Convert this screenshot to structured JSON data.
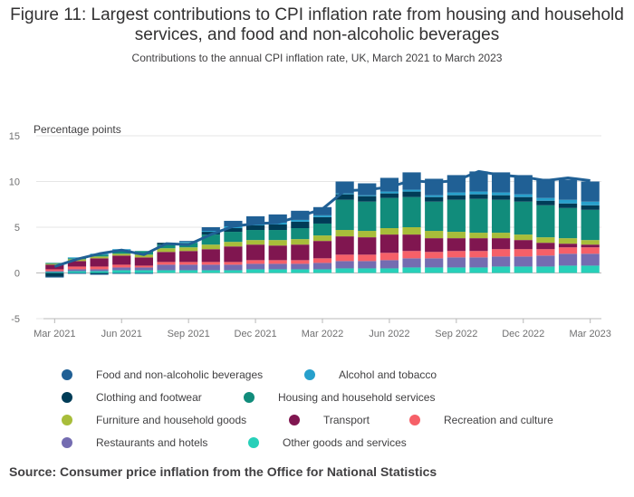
{
  "chart_data": {
    "type": "bar",
    "stacked": true,
    "title": "Figure 11: Largest contributions to CPI inflation rate from housing and household services, and food and non-alcoholic beverages",
    "subtitle": "Contributions to the annual CPI inflation rate, UK, March 2021 to March 2023",
    "ylabel": "Percentage points",
    "ylim": [
      -5,
      15
    ],
    "yticks": [
      -5,
      0,
      5,
      10,
      15
    ],
    "grid": true,
    "legend_position": "bottom",
    "source": "Source: Consumer price inflation from the Office for National Statistics",
    "x_tick_labels": [
      "Mar 2021",
      "Jun 2021",
      "Sep 2021",
      "Dec 2021",
      "Mar 2022",
      "Jun 2022",
      "Sep 2022",
      "Dec 2022",
      "Mar 2023"
    ],
    "x_tick_index": [
      0,
      3,
      6,
      9,
      12,
      15,
      18,
      21,
      24
    ],
    "categories": [
      "Mar 2021",
      "Apr 2021",
      "May 2021",
      "Jun 2021",
      "Jul 2021",
      "Aug 2021",
      "Sep 2021",
      "Oct 2021",
      "Nov 2021",
      "Dec 2021",
      "Jan 2022",
      "Feb 2022",
      "Mar 2022",
      "Apr 2022",
      "May 2022",
      "Jun 2022",
      "Jul 2022",
      "Aug 2022",
      "Sep 2022",
      "Oct 2022",
      "Nov 2022",
      "Dec 2022",
      "Jan 2023",
      "Feb 2023",
      "Mar 2023"
    ],
    "series": [
      {
        "name": "Other goods and services",
        "color": "#27d0b9",
        "values": [
          0.1,
          0.2,
          0.2,
          0.3,
          0.3,
          0.3,
          0.3,
          0.3,
          0.3,
          0.4,
          0.4,
          0.4,
          0.4,
          0.5,
          0.5,
          0.5,
          0.6,
          0.6,
          0.6,
          0.6,
          0.7,
          0.7,
          0.7,
          0.8,
          0.8
        ]
      },
      {
        "name": "Restaurants and hotels",
        "color": "#746cb1",
        "values": [
          0.1,
          0.2,
          0.2,
          0.3,
          0.3,
          0.6,
          0.6,
          0.6,
          0.6,
          0.6,
          0.6,
          0.6,
          0.7,
          0.8,
          0.8,
          0.9,
          1.0,
          1.0,
          1.1,
          1.1,
          1.1,
          1.1,
          1.2,
          1.3,
          1.3
        ]
      },
      {
        "name": "Recreation and culture",
        "color": "#f66068",
        "values": [
          0.2,
          0.3,
          0.3,
          0.3,
          0.2,
          0.3,
          0.3,
          0.3,
          0.3,
          0.4,
          0.4,
          0.4,
          0.5,
          0.7,
          0.7,
          0.8,
          0.8,
          0.7,
          0.7,
          0.7,
          0.8,
          0.8,
          0.7,
          0.7,
          0.7
        ]
      },
      {
        "name": "Transport",
        "color": "#801650",
        "values": [
          0.5,
          0.6,
          0.9,
          1.0,
          0.9,
          1.1,
          1.2,
          1.4,
          1.7,
          1.7,
          1.6,
          1.7,
          1.9,
          2.0,
          1.9,
          2.0,
          1.8,
          1.5,
          1.4,
          1.4,
          1.2,
          1.0,
          0.7,
          0.4,
          0.3
        ]
      },
      {
        "name": "Furniture and household goods",
        "color": "#a8bd3a",
        "values": [
          0.1,
          0.2,
          0.2,
          0.2,
          0.3,
          0.4,
          0.4,
          0.5,
          0.5,
          0.5,
          0.6,
          0.6,
          0.6,
          0.7,
          0.7,
          0.7,
          0.8,
          0.8,
          0.7,
          0.6,
          0.6,
          0.6,
          0.6,
          0.6,
          0.5
        ]
      },
      {
        "name": "Housing and household services",
        "color": "#118c7b",
        "values": [
          0.1,
          0.1,
          0.2,
          0.3,
          0.4,
          0.4,
          0.5,
          1.1,
          1.1,
          1.1,
          1.1,
          1.2,
          1.3,
          3.3,
          3.2,
          3.3,
          3.3,
          3.2,
          3.5,
          3.7,
          3.6,
          3.6,
          3.5,
          3.3,
          3.3
        ]
      },
      {
        "name": "Clothing and footwear",
        "color": "#003c57",
        "values": [
          -0.4,
          0.0,
          -0.1,
          0.1,
          0.0,
          0.2,
          0.0,
          0.3,
          0.4,
          0.5,
          0.6,
          0.7,
          0.7,
          0.6,
          0.6,
          0.5,
          0.6,
          0.5,
          0.5,
          0.5,
          0.5,
          0.5,
          0.5,
          0.5,
          0.5
        ]
      },
      {
        "name": "Alcohol and tobacco",
        "color": "#27a0cc",
        "values": [
          0.0,
          0.1,
          0.1,
          0.1,
          0.0,
          0.0,
          0.1,
          0.1,
          0.2,
          0.2,
          0.2,
          0.2,
          0.2,
          0.1,
          0.1,
          0.2,
          0.2,
          0.2,
          0.3,
          0.3,
          0.3,
          0.3,
          0.3,
          0.4,
          0.4
        ]
      },
      {
        "name": "Food and non-alcoholic beverages",
        "color": "#206095",
        "values": [
          -0.1,
          -0.1,
          -0.1,
          -0.1,
          -0.1,
          0.0,
          0.1,
          0.4,
          0.6,
          0.8,
          0.9,
          1.0,
          0.9,
          1.3,
          1.3,
          1.5,
          1.9,
          1.8,
          1.9,
          2.2,
          2.2,
          2.1,
          2.1,
          2.2,
          2.2
        ]
      }
    ],
    "line": {
      "name": "CPI",
      "color": "#206095",
      "values": [
        0.7,
        1.5,
        2.1,
        2.5,
        2.0,
        3.2,
        3.1,
        4.2,
        5.1,
        5.4,
        5.5,
        6.2,
        7.0,
        9.0,
        9.1,
        9.4,
        10.1,
        9.9,
        10.1,
        11.1,
        10.7,
        10.5,
        10.1,
        10.4,
        10.1
      ]
    }
  }
}
